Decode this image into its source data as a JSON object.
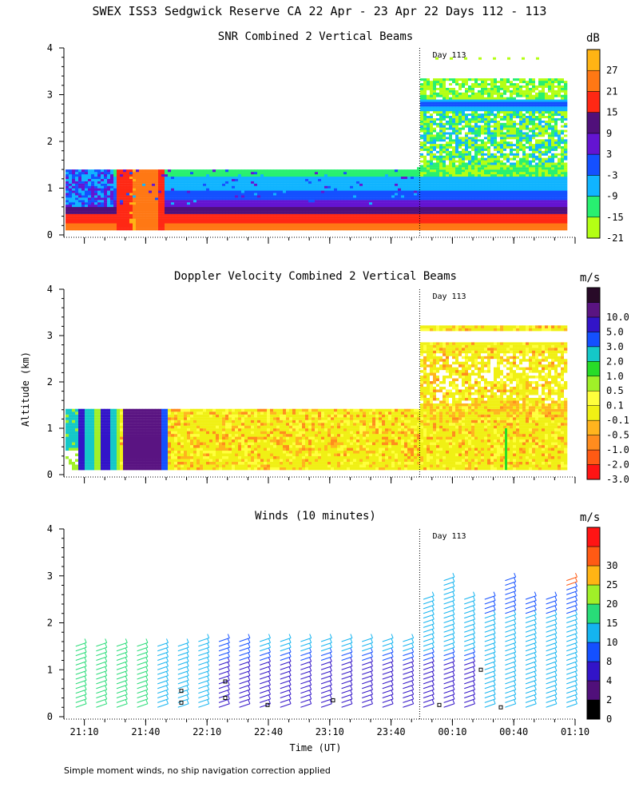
{
  "title": "SWEX ISS3 Sedgwick Reserve CA  22 Apr - 23 Apr 22 Days 112 - 113",
  "footnote": "Simple moment winds, no ship navigation correction applied",
  "ylabel": "Altitude (km)",
  "xlabel": "Time (UT)",
  "day_marker": "Day 113",
  "chart_data": [
    {
      "type": "heatmap",
      "title": "SNR Combined 2 Vertical Beams",
      "unit": "dB",
      "ylabel": "Altitude (km)",
      "xlabel": "Time (UT)",
      "ylim": [
        0,
        4
      ],
      "y_ticks": [
        "0",
        "1",
        "2",
        "3",
        "4"
      ],
      "x_ticks": [
        "21:10",
        "21:40",
        "22:10",
        "22:40",
        "23:10",
        "23:40",
        "00:10",
        "00:40",
        "01:10"
      ],
      "colorbar": [
        {
          "label": "-21",
          "color": "#b4ff14"
        },
        {
          "label": "-15",
          "color": "#28f070"
        },
        {
          "label": "-9",
          "color": "#10b4ff"
        },
        {
          "label": "-3",
          "color": "#1450ff"
        },
        {
          "label": "3",
          "color": "#6414d2"
        },
        {
          "label": "9",
          "color": "#50107a"
        },
        {
          "label": "15",
          "color": "#ff2814"
        },
        {
          "label": "21",
          "color": "#ff7814"
        },
        {
          "label": "27",
          "color": "#ffb414"
        }
      ],
      "day_boundary_time": "23:54"
    },
    {
      "type": "heatmap",
      "title": "Doppler Velocity Combined 2 Vertical Beams",
      "unit": "m/s",
      "ylim": [
        0,
        4
      ],
      "y_ticks": [
        "0",
        "1",
        "2",
        "3",
        "4"
      ],
      "x_ticks": [
        "21:10",
        "21:40",
        "22:10",
        "22:40",
        "23:10",
        "23:40",
        "00:10",
        "00:40",
        "01:10"
      ],
      "colorbar": [
        {
          "label": "-3.0",
          "color": "#ff1414"
        },
        {
          "label": "-2.0",
          "color": "#ff5a14"
        },
        {
          "label": "-1.0",
          "color": "#ff8c1e"
        },
        {
          "label": "-0.5",
          "color": "#ffb41e"
        },
        {
          "label": "-0.1",
          "color": "#f0f014"
        },
        {
          "label": "0.1",
          "color": "#ffff3c"
        },
        {
          "label": "0.5",
          "color": "#a0f028"
        },
        {
          "label": "1.0",
          "color": "#28dc28"
        },
        {
          "label": "2.0",
          "color": "#14c8c8"
        },
        {
          "label": "3.0",
          "color": "#1450ff"
        },
        {
          "label": "5.0",
          "color": "#3214c8"
        },
        {
          "label": "10.0",
          "color": "#5a1482"
        },
        {
          "label": "",
          "color": "#280a28"
        }
      ],
      "day_boundary_time": "23:54"
    },
    {
      "type": "scatter",
      "title": "Winds (10 minutes)",
      "unit": "m/s",
      "ylim": [
        0,
        4
      ],
      "y_ticks": [
        "0",
        "1",
        "2",
        "3",
        "4"
      ],
      "x_ticks": [
        "21:10",
        "21:40",
        "22:10",
        "22:40",
        "23:10",
        "23:40",
        "00:10",
        "00:40",
        "01:10"
      ],
      "colorbar": [
        {
          "label": "0",
          "color": "#000000"
        },
        {
          "label": "2",
          "color": "#50107a"
        },
        {
          "label": "4",
          "color": "#3214c8"
        },
        {
          "label": "8",
          "color": "#1450ff"
        },
        {
          "label": "10",
          "color": "#14b4f0"
        },
        {
          "label": "15",
          "color": "#28dc78"
        },
        {
          "label": "20",
          "color": "#a0f028"
        },
        {
          "label": "25",
          "color": "#ffb414"
        },
        {
          "label": "30",
          "color": "#ff5a14"
        },
        {
          "label": "",
          "color": "#ff1414"
        }
      ],
      "day_boundary_time": "23:54"
    }
  ]
}
